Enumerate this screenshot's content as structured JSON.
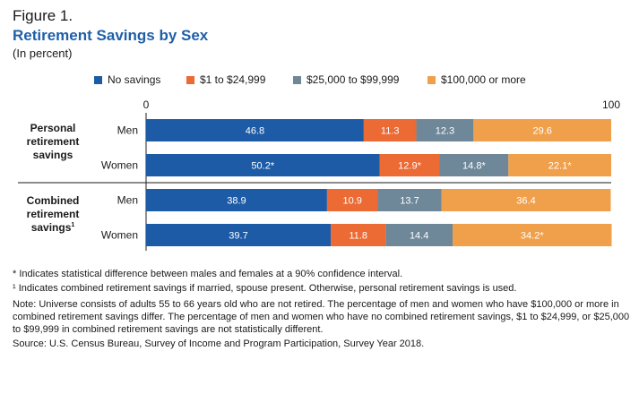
{
  "figure_label": "Figure 1.",
  "chart_data": {
    "type": "bar",
    "orientation": "horizontal",
    "stacked": true,
    "title": "Retirement Savings by Sex",
    "subtitle": "(In percent)",
    "x_ticks": [
      "0",
      "100"
    ],
    "xlim": [
      0,
      100
    ],
    "legend_position": "top",
    "colors": [
      "#1d5ba6",
      "#ec6a34",
      "#6e8799",
      "#f0a04b"
    ],
    "series": [
      {
        "name": "No savings",
        "values": [
          46.8,
          50.2,
          38.9,
          39.7
        ],
        "labels": [
          "46.8",
          "50.2*",
          "38.9",
          "39.7"
        ]
      },
      {
        "name": "$1 to $24,999",
        "values": [
          11.3,
          12.9,
          10.9,
          11.8
        ],
        "labels": [
          "11.3",
          "12.9*",
          "10.9",
          "11.8"
        ]
      },
      {
        "name": "$25,000 to $99,999",
        "values": [
          12.3,
          14.8,
          13.7,
          14.4
        ],
        "labels": [
          "12.3",
          "14.8*",
          "13.7",
          "14.4"
        ]
      },
      {
        "name": "$100,000 or more",
        "values": [
          29.6,
          22.1,
          36.4,
          34.2
        ],
        "labels": [
          "29.6",
          "22.1*",
          "36.4",
          "34.2*"
        ]
      }
    ],
    "groups": [
      {
        "label_lines": [
          "Personal",
          "retirement",
          "savings"
        ],
        "categories": [
          "Men",
          "Women"
        ]
      },
      {
        "label_lines": [
          "Combined",
          "retirement",
          "savings"
        ],
        "superscript": "1",
        "categories": [
          "Men",
          "Women"
        ]
      }
    ]
  },
  "notes": {
    "asterisk": "* Indicates statistical difference between males and females at a 90% confidence interval.",
    "footnote1": "¹ Indicates combined retirement savings if married, spouse present. Otherwise, personal retirement savings is used.",
    "universe": "Note: Universe consists of adults 55 to 66 years old who are not retired. The percentage of men and women who have $100,000 or more in combined retirement savings differ. The percentage of men and women who have no combined retirement savings, $1 to $24,999, or $25,000 to $99,999 in combined retirement savings are not statistically different.",
    "source": "Source: U.S. Census Bureau, Survey of Income and Program Participation, Survey Year 2018."
  }
}
